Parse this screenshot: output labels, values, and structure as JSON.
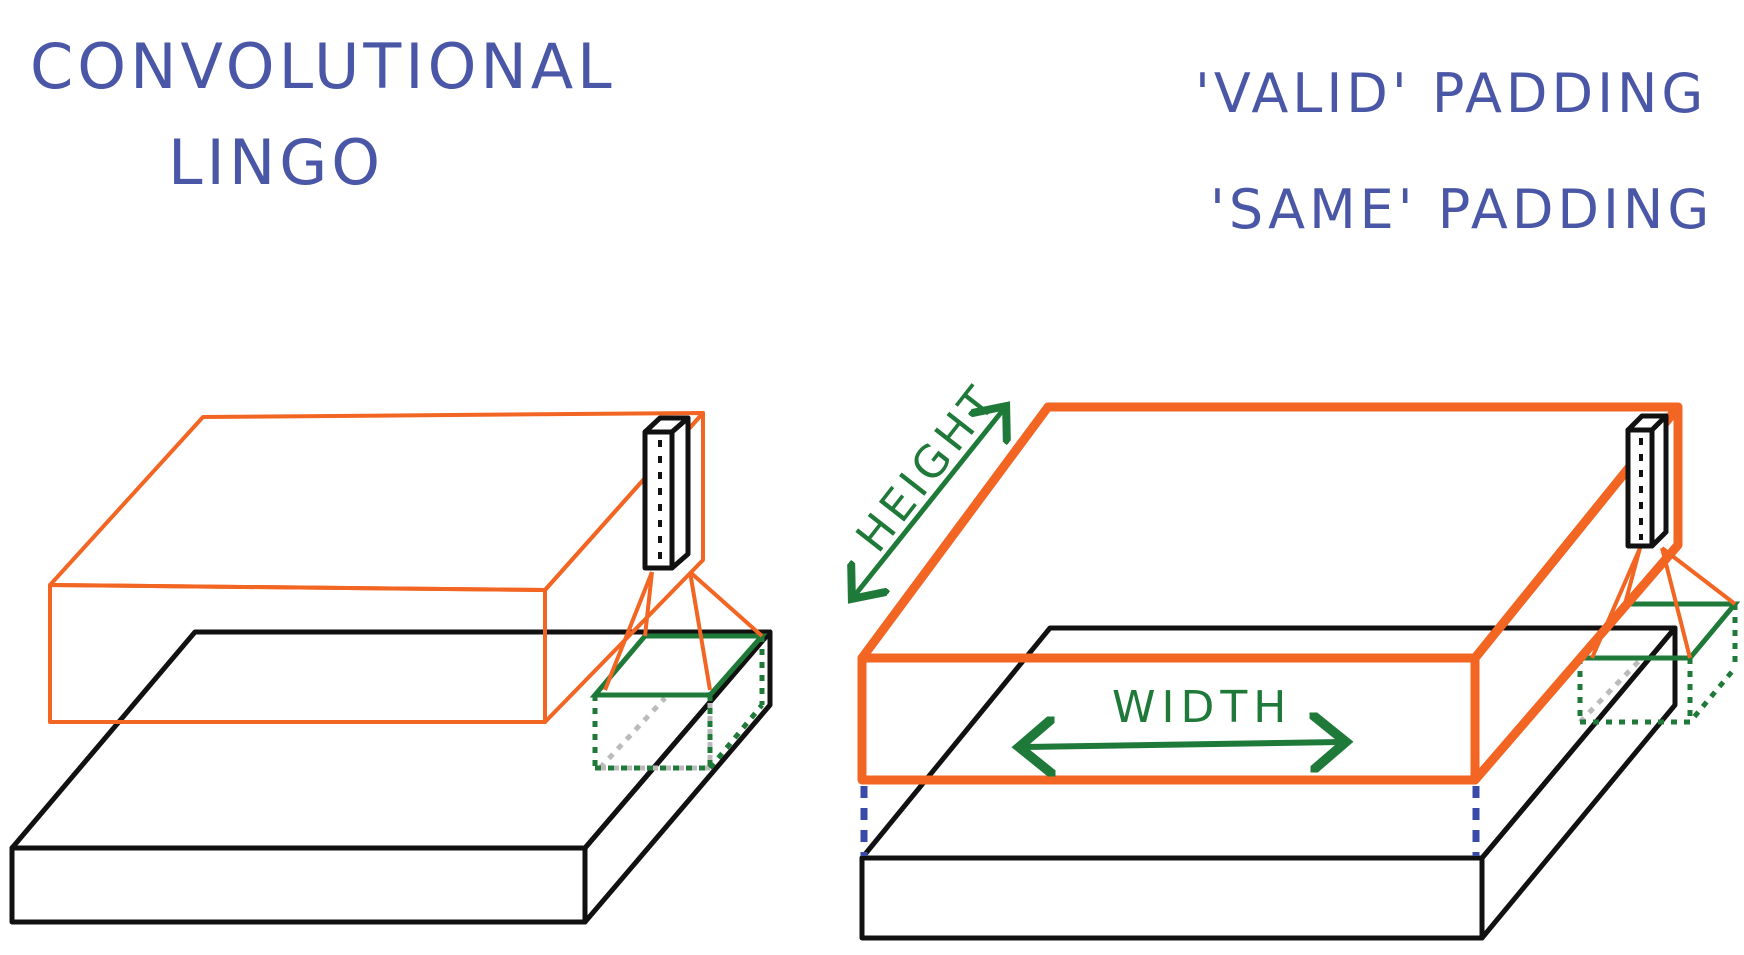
{
  "title": {
    "line1": "CONVOLUTIONAL",
    "line2": "LINGO"
  },
  "padding_types": [
    "'VALID' PADDING",
    "'SAME' PADDING"
  ],
  "labels": {
    "height": "HEIGHT",
    "width": "WIDTH"
  },
  "colors": {
    "ink_blue": "#4a56a6",
    "orange": "#f26522",
    "green": "#1f7a3a",
    "black": "#111111",
    "gray_dotted": "#bbbbbb",
    "blue_dashed": "#3a4aa8"
  }
}
